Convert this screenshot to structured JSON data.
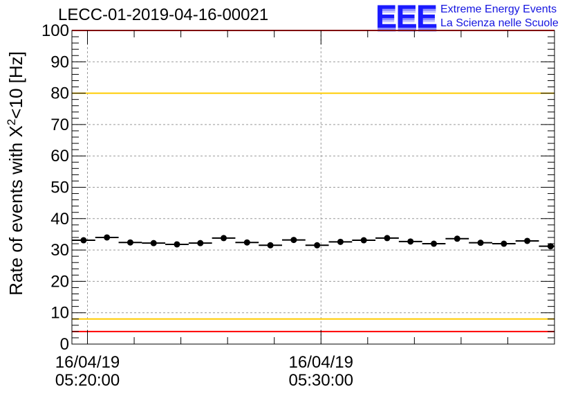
{
  "header": {
    "title": "LECC-01-2019-04-16-00021"
  },
  "logo": {
    "mark": "EEE",
    "line1": "Extreme Energy Events",
    "line2": "La Scienza nelle Scuole",
    "color": "#1515e0"
  },
  "chart_data": {
    "type": "scatter",
    "title": "LECC-01-2019-04-16-00021",
    "ylabel_prefix": "Rate of events with X",
    "ylabel_sup": "2",
    "ylabel_suffix": "<10 [Hz]",
    "xlabel": "",
    "ylim": [
      0,
      100
    ],
    "yticks": [
      0,
      10,
      20,
      30,
      40,
      50,
      60,
      70,
      80,
      90,
      100
    ],
    "xlim": [
      "05:19:20",
      "05:40:00"
    ],
    "x_ticks": [
      {
        "date": "16/04/19",
        "time": "05:20:00"
      },
      {
        "date": "16/04/19",
        "time": "05:30:00"
      }
    ],
    "x_minor_tick_minutes": 2,
    "grid": true,
    "bin_width_seconds": 60,
    "series": [
      {
        "x": [
          "05:19:50",
          "05:20:50",
          "05:21:50",
          "05:22:50",
          "05:23:50",
          "05:24:50",
          "05:25:50",
          "05:26:50",
          "05:27:50",
          "05:28:50",
          "05:29:50",
          "05:30:50",
          "05:31:50",
          "05:32:50",
          "05:33:50",
          "05:34:50",
          "05:35:50",
          "05:36:50",
          "05:37:50",
          "05:38:50",
          "05:39:50"
        ],
        "y": [
          33.1,
          34.0,
          32.4,
          32.2,
          31.8,
          32.2,
          33.8,
          32.4,
          31.5,
          33.2,
          31.5,
          32.6,
          33.1,
          33.8,
          32.7,
          32.0,
          33.6,
          32.3,
          32.0,
          32.9,
          31.2
        ]
      }
    ],
    "reference_lines": [
      {
        "y": 100,
        "color": "#ff0000"
      },
      {
        "y": 80,
        "color": "#ffcc00"
      },
      {
        "y": 8,
        "color": "#ffcc00"
      },
      {
        "y": 4,
        "color": "#ff0000"
      }
    ]
  }
}
